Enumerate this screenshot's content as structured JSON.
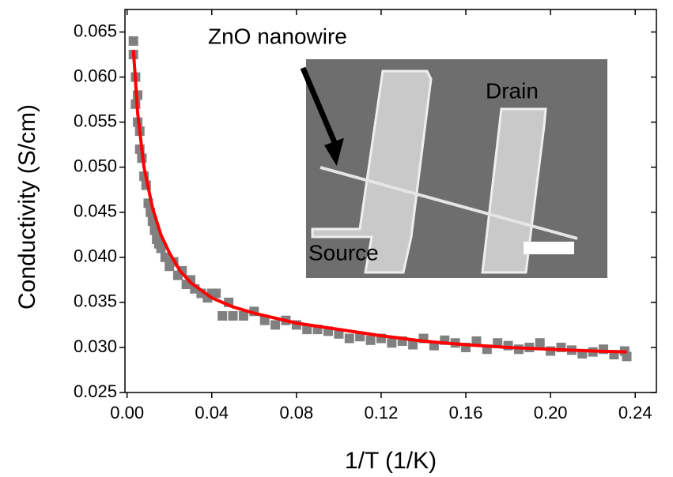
{
  "chart_data": {
    "type": "scatter",
    "xlabel": "1/T (1/K)",
    "ylabel": "Conductivity (S/cm)",
    "xlim": [
      -0.001,
      0.25
    ],
    "ylim": [
      0.025,
      0.0675
    ],
    "xticks": [
      {
        "value": 0,
        "label": "0.00"
      },
      0.04,
      0.08,
      0.12,
      0.16,
      {
        "value": 0.2,
        "label": "0.20"
      },
      0.24
    ],
    "yticks": [
      0.025,
      {
        "value": 0.03,
        "label": "0.030"
      },
      0.035,
      {
        "value": 0.04,
        "label": "0.040"
      },
      0.045,
      {
        "value": 0.05,
        "label": "0.050"
      },
      0.055,
      {
        "value": 0.06,
        "label": "0.060"
      },
      0.065
    ],
    "annotations": [
      "ZnO nanowire",
      "Drain",
      "Source"
    ],
    "series": [
      {
        "style": "square",
        "color": "#808080",
        "x": [
          0.003,
          0.003,
          0.004,
          0.004,
          0.005,
          0.005,
          0.006,
          0.006,
          0.007,
          0.008,
          0.009,
          0.01,
          0.011,
          0.012,
          0.013,
          0.014,
          0.015,
          0.016,
          0.018,
          0.02,
          0.022,
          0.024,
          0.026,
          0.028,
          0.03,
          0.032,
          0.035,
          0.038,
          0.04,
          0.042,
          0.045,
          0.048,
          0.05,
          0.055,
          0.06,
          0.065,
          0.07,
          0.075,
          0.08,
          0.085,
          0.09,
          0.095,
          0.1,
          0.105,
          0.11,
          0.115,
          0.12,
          0.125,
          0.13,
          0.135,
          0.14,
          0.145,
          0.15,
          0.155,
          0.16,
          0.165,
          0.17,
          0.175,
          0.18,
          0.185,
          0.19,
          0.195,
          0.2,
          0.205,
          0.21,
          0.215,
          0.22,
          0.225,
          0.23,
          0.235,
          0.236
        ],
        "values": [
          0.064,
          0.0625,
          0.06,
          0.057,
          0.058,
          0.055,
          0.054,
          0.052,
          0.051,
          0.049,
          0.048,
          0.046,
          0.045,
          0.044,
          0.043,
          0.042,
          0.0415,
          0.041,
          0.04,
          0.039,
          0.0395,
          0.038,
          0.0385,
          0.037,
          0.0375,
          0.0365,
          0.036,
          0.0355,
          0.036,
          0.036,
          0.0335,
          0.035,
          0.0335,
          0.0335,
          0.034,
          0.033,
          0.0325,
          0.033,
          0.0325,
          0.032,
          0.032,
          0.0318,
          0.0315,
          0.031,
          0.0312,
          0.0308,
          0.031,
          0.0305,
          0.0307,
          0.0303,
          0.031,
          0.0302,
          0.0308,
          0.0305,
          0.03,
          0.0307,
          0.0298,
          0.0305,
          0.0302,
          0.0298,
          0.03,
          0.0305,
          0.0296,
          0.03,
          0.0297,
          0.0293,
          0.0295,
          0.0298,
          0.0292,
          0.0296,
          0.029
        ]
      },
      {
        "style": "line",
        "color": "#ff0000",
        "x": [
          0.003,
          0.005,
          0.008,
          0.012,
          0.016,
          0.02,
          0.025,
          0.03,
          0.04,
          0.05,
          0.06,
          0.08,
          0.1,
          0.12,
          0.14,
          0.16,
          0.18,
          0.2,
          0.22,
          0.236
        ],
        "values": [
          0.063,
          0.056,
          0.05,
          0.0455,
          0.0425,
          0.0405,
          0.0385,
          0.0372,
          0.0355,
          0.0345,
          0.0338,
          0.0327,
          0.032,
          0.0313,
          0.0307,
          0.0303,
          0.03,
          0.0298,
          0.0296,
          0.0295
        ]
      }
    ]
  }
}
